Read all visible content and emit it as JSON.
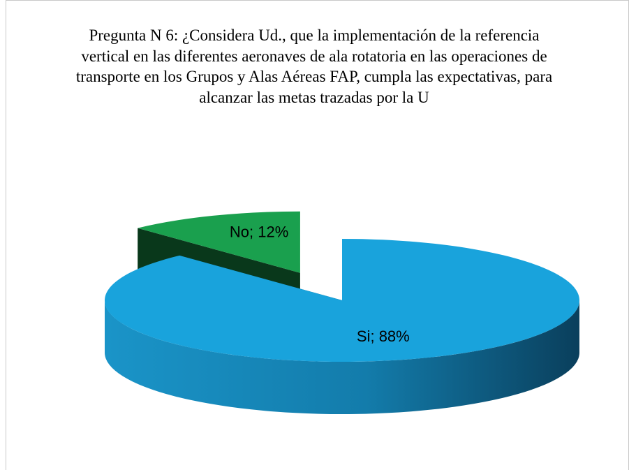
{
  "chart_data": {
    "type": "pie",
    "title": "Pregunta N 6: ¿Considera Ud., que la implementación de la referencia vertical en las diferentes aeronaves de ala rotatoria en las operaciones de transporte en los Grupos y Alas Aéreas FAP, cumpla las expectativas, para alcanzar las metas trazadas por la U",
    "categories": [
      "Si",
      "No"
    ],
    "values": [
      88,
      12
    ],
    "value_labels": [
      "Si; 88%",
      "No; 12%"
    ],
    "colors": [
      "#19a3dc",
      "#1aa04e"
    ],
    "exploded": [
      false,
      true
    ]
  }
}
